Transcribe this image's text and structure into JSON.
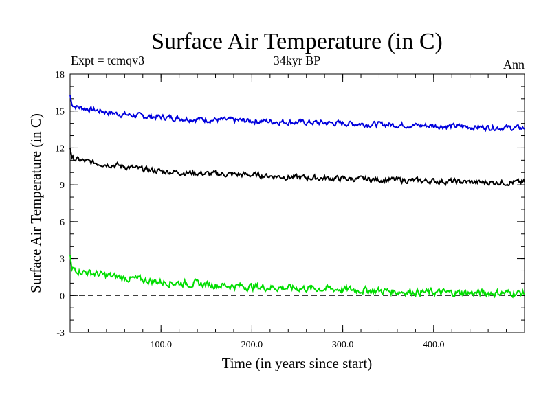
{
  "chart_data": {
    "type": "line",
    "title": "Surface Air Temperature (in C)",
    "header_left": "Expt = tcmqv3",
    "header_center": "34kyr BP",
    "header_right": "Ann",
    "xlabel": "Time (in years since start)",
    "ylabel": "Surface Air Temperature (in C)",
    "xlim": [
      0,
      500
    ],
    "ylim": [
      -3,
      18
    ],
    "x_ticks": [
      100,
      200,
      300,
      400
    ],
    "x_tick_labels": [
      "100.0",
      "200.0",
      "300.0",
      "400.0"
    ],
    "y_ticks": [
      -3,
      0,
      3,
      6,
      9,
      12,
      15,
      18
    ],
    "y_tick_labels": [
      "-3",
      "0",
      "3",
      "6",
      "9",
      "12",
      "15",
      "18"
    ],
    "zero_line": {
      "y": 0,
      "style": "dashed"
    },
    "series": [
      {
        "color": "#0000dd",
        "x": [
          0,
          2,
          5,
          10,
          25,
          50,
          75,
          100,
          150,
          200,
          250,
          300,
          350,
          400,
          450,
          500
        ],
        "values": [
          16.3,
          15.5,
          15.4,
          15.3,
          15.1,
          14.8,
          14.6,
          14.5,
          14.3,
          14.2,
          14.1,
          14.0,
          13.9,
          13.8,
          13.7,
          13.6
        ]
      },
      {
        "color": "#000000",
        "x": [
          0,
          2,
          5,
          10,
          25,
          50,
          75,
          100,
          150,
          200,
          250,
          300,
          350,
          400,
          450,
          500
        ],
        "values": [
          12.0,
          11.2,
          11.1,
          11.0,
          10.8,
          10.6,
          10.3,
          10.1,
          9.9,
          9.8,
          9.6,
          9.5,
          9.4,
          9.3,
          9.2,
          9.2
        ]
      },
      {
        "color": "#00dd00",
        "x": [
          0,
          2,
          5,
          10,
          25,
          50,
          75,
          100,
          150,
          200,
          250,
          300,
          350,
          400,
          450,
          500
        ],
        "values": [
          3.3,
          2.1,
          2.2,
          2.0,
          1.8,
          1.5,
          1.3,
          1.1,
          0.9,
          0.7,
          0.6,
          0.5,
          0.35,
          0.25,
          0.2,
          0.2
        ]
      }
    ]
  }
}
